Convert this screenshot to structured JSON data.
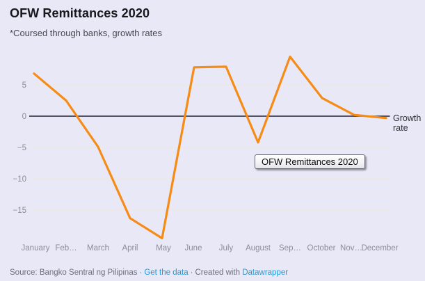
{
  "header": {
    "title": "OFW Remittances 2020",
    "subtitle": "*Coursed through banks, growth rates"
  },
  "chart_data": {
    "type": "line",
    "title": "OFW Remittances 2020",
    "subtitle": "*Coursed through banks, growth rates",
    "categories": [
      "January",
      "Feb…",
      "March",
      "April",
      "May",
      "June",
      "July",
      "August",
      "Sep…",
      "October",
      "Nov…",
      "December"
    ],
    "series": [
      {
        "name": "Growth rate",
        "values": [
          6.8,
          2.5,
          -4.9,
          -16.3,
          -19.5,
          7.8,
          7.9,
          -4.2,
          9.5,
          2.9,
          0.2,
          -0.3
        ]
      }
    ],
    "xlabel": "",
    "ylabel": "",
    "y_ticks": [
      5,
      0,
      -5,
      -10,
      -15
    ],
    "ylim": [
      -20.5,
      10.5
    ],
    "grid": true,
    "legend_position": "right-end-of-line",
    "line_color": "#f68b15",
    "zero_line_color": "#232337"
  },
  "tooltip": {
    "text": "OFW Remittances 2020"
  },
  "footer": {
    "source": "Source: Bangko Sentral ng Pilipinas",
    "sep1": "·",
    "link1": "Get the data",
    "created": "Created with",
    "link2": "Datawrapper"
  },
  "colors": {
    "background": "#e8e8f6",
    "line": "#f68b15",
    "zero_line": "#232337",
    "gridline": "#efe7d9",
    "axis_text": "#8d8d98",
    "link": "#1d9cd9"
  }
}
